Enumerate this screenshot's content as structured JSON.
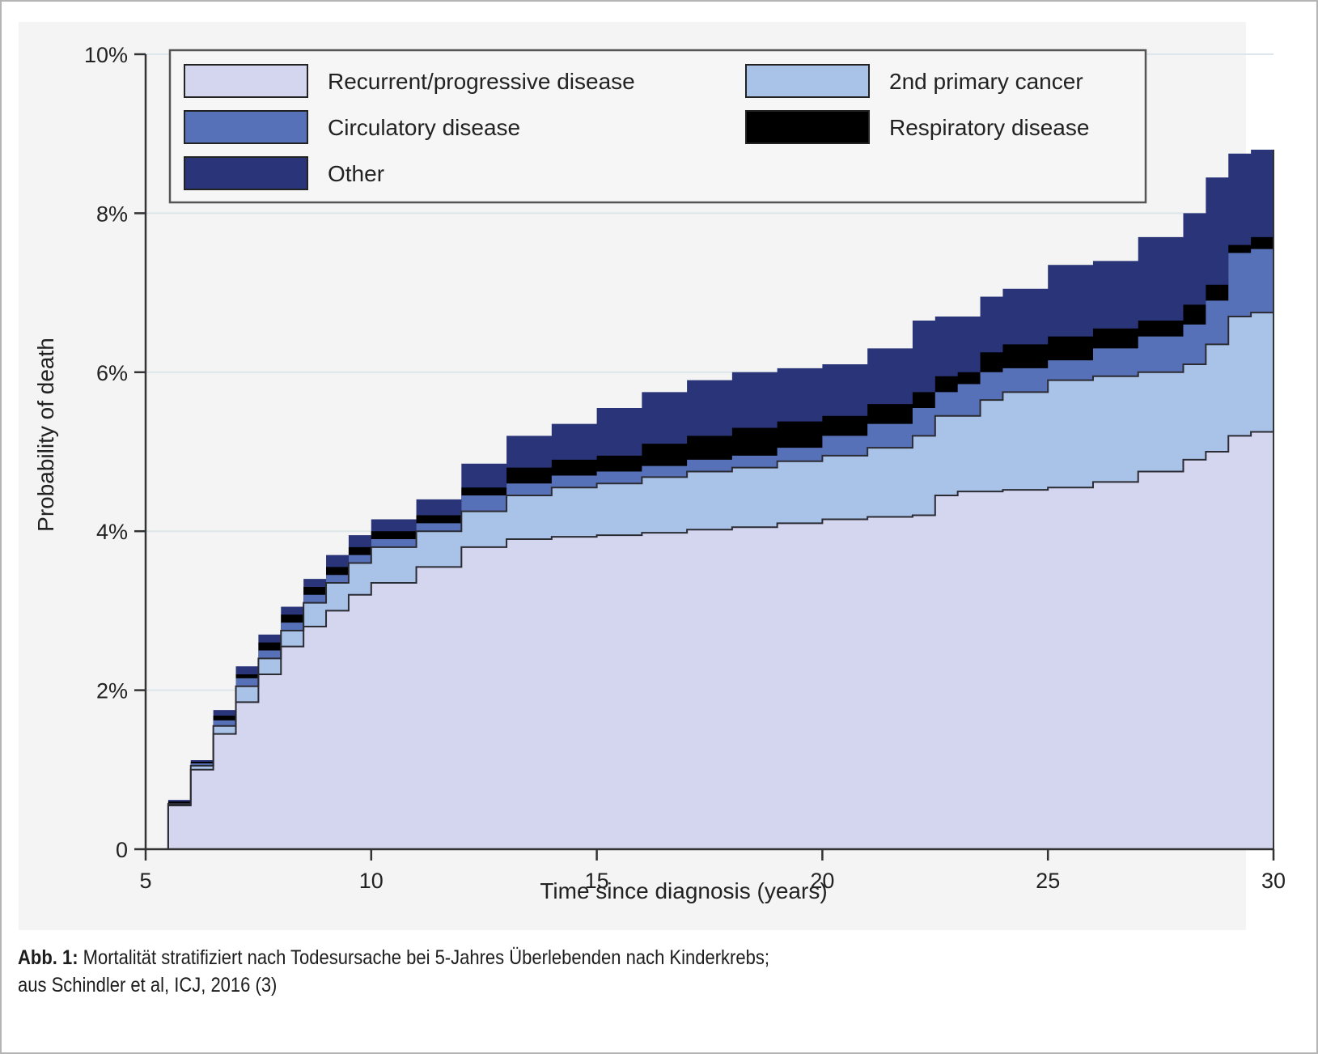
{
  "chart_data": {
    "type": "area",
    "stacked": true,
    "step": true,
    "xlabel": "Time since diagnosis (years)",
    "ylabel": "Probability of death",
    "xlim": [
      5,
      30
    ],
    "ylim": [
      0,
      10
    ],
    "x_ticks": [
      5,
      10,
      15,
      20,
      25,
      30
    ],
    "x_tick_labels": [
      "5",
      "10",
      "15",
      "20",
      "25",
      "30"
    ],
    "y_ticks": [
      0,
      2,
      4,
      6,
      8,
      10
    ],
    "y_tick_labels": [
      "0",
      "2%",
      "4%",
      "6%",
      "8%",
      "10%"
    ],
    "grid": "horizontal",
    "legend_position": "top",
    "x": [
      5,
      5.5,
      6,
      6.5,
      7,
      7.5,
      8,
      8.5,
      9,
      9.5,
      10,
      11,
      12,
      13,
      14,
      15,
      16,
      17,
      18,
      19,
      20,
      21,
      22,
      22.5,
      23,
      23.5,
      24,
      25,
      26,
      27,
      28,
      28.5,
      29,
      29.5,
      30
    ],
    "cumulative_boundaries_note": "values are stacked cumulative probabilities in percent",
    "series": [
      {
        "name": "Recurrent/progressive disease",
        "color": "#d4d5ef",
        "cumulative": [
          0,
          0.55,
          1.0,
          1.45,
          1.85,
          2.2,
          2.55,
          2.8,
          3.0,
          3.2,
          3.35,
          3.55,
          3.8,
          3.9,
          3.93,
          3.95,
          3.98,
          4.02,
          4.05,
          4.1,
          4.15,
          4.18,
          4.2,
          4.45,
          4.5,
          4.5,
          4.52,
          4.55,
          4.62,
          4.75,
          4.9,
          5.0,
          5.2,
          5.25,
          5.25
        ]
      },
      {
        "name": "2nd primary cancer",
        "color": "#a9c2e8",
        "cumulative": [
          0,
          0.57,
          1.05,
          1.55,
          2.05,
          2.4,
          2.75,
          3.1,
          3.35,
          3.6,
          3.8,
          4.0,
          4.25,
          4.45,
          4.55,
          4.6,
          4.68,
          4.75,
          4.8,
          4.88,
          4.95,
          5.05,
          5.2,
          5.45,
          5.45,
          5.65,
          5.75,
          5.9,
          5.95,
          6.0,
          6.1,
          6.35,
          6.7,
          6.75,
          6.75
        ]
      },
      {
        "name": "Circulatory disease",
        "color": "#5771b8",
        "cumulative": [
          0,
          0.58,
          1.08,
          1.62,
          2.15,
          2.5,
          2.85,
          3.2,
          3.45,
          3.7,
          3.9,
          4.1,
          4.45,
          4.6,
          4.7,
          4.75,
          4.82,
          4.9,
          4.95,
          5.05,
          5.2,
          5.35,
          5.55,
          5.75,
          5.85,
          6.0,
          6.05,
          6.15,
          6.3,
          6.45,
          6.6,
          6.9,
          7.5,
          7.55,
          7.55
        ]
      },
      {
        "name": "Respiratory disease",
        "color": "#000000",
        "cumulative": [
          0,
          0.6,
          1.1,
          1.68,
          2.2,
          2.6,
          2.95,
          3.3,
          3.55,
          3.8,
          4.0,
          4.2,
          4.55,
          4.8,
          4.9,
          4.95,
          5.1,
          5.2,
          5.3,
          5.38,
          5.45,
          5.6,
          5.75,
          5.95,
          6.0,
          6.25,
          6.35,
          6.45,
          6.55,
          6.65,
          6.85,
          7.1,
          7.6,
          7.7,
          7.7
        ]
      },
      {
        "name": "Other",
        "color": "#2a3478",
        "cumulative": [
          0,
          0.62,
          1.12,
          1.75,
          2.3,
          2.7,
          3.05,
          3.4,
          3.7,
          3.95,
          4.15,
          4.4,
          4.85,
          5.2,
          5.35,
          5.55,
          5.75,
          5.9,
          6.0,
          6.05,
          6.1,
          6.3,
          6.65,
          6.7,
          6.7,
          6.95,
          7.05,
          7.35,
          7.4,
          7.7,
          8.0,
          8.45,
          8.75,
          8.8,
          8.8
        ]
      }
    ],
    "legend": [
      {
        "label": "Recurrent/progressive disease",
        "color": "#d4d5ef"
      },
      {
        "label": "2nd primary cancer",
        "color": "#a9c2e8"
      },
      {
        "label": "Circulatory disease",
        "color": "#5771b8"
      },
      {
        "label": "Respiratory disease",
        "color": "#000000"
      },
      {
        "label": "Other",
        "color": "#2a3478"
      }
    ]
  },
  "caption": {
    "label": "Abb. 1:",
    "line1": " Mortalität stratifiziert nach Todesursache bei 5-Jahres Überlebenden nach Kinderkrebs;",
    "line2": "aus Schindler et al, ICJ, 2016 (3)"
  }
}
